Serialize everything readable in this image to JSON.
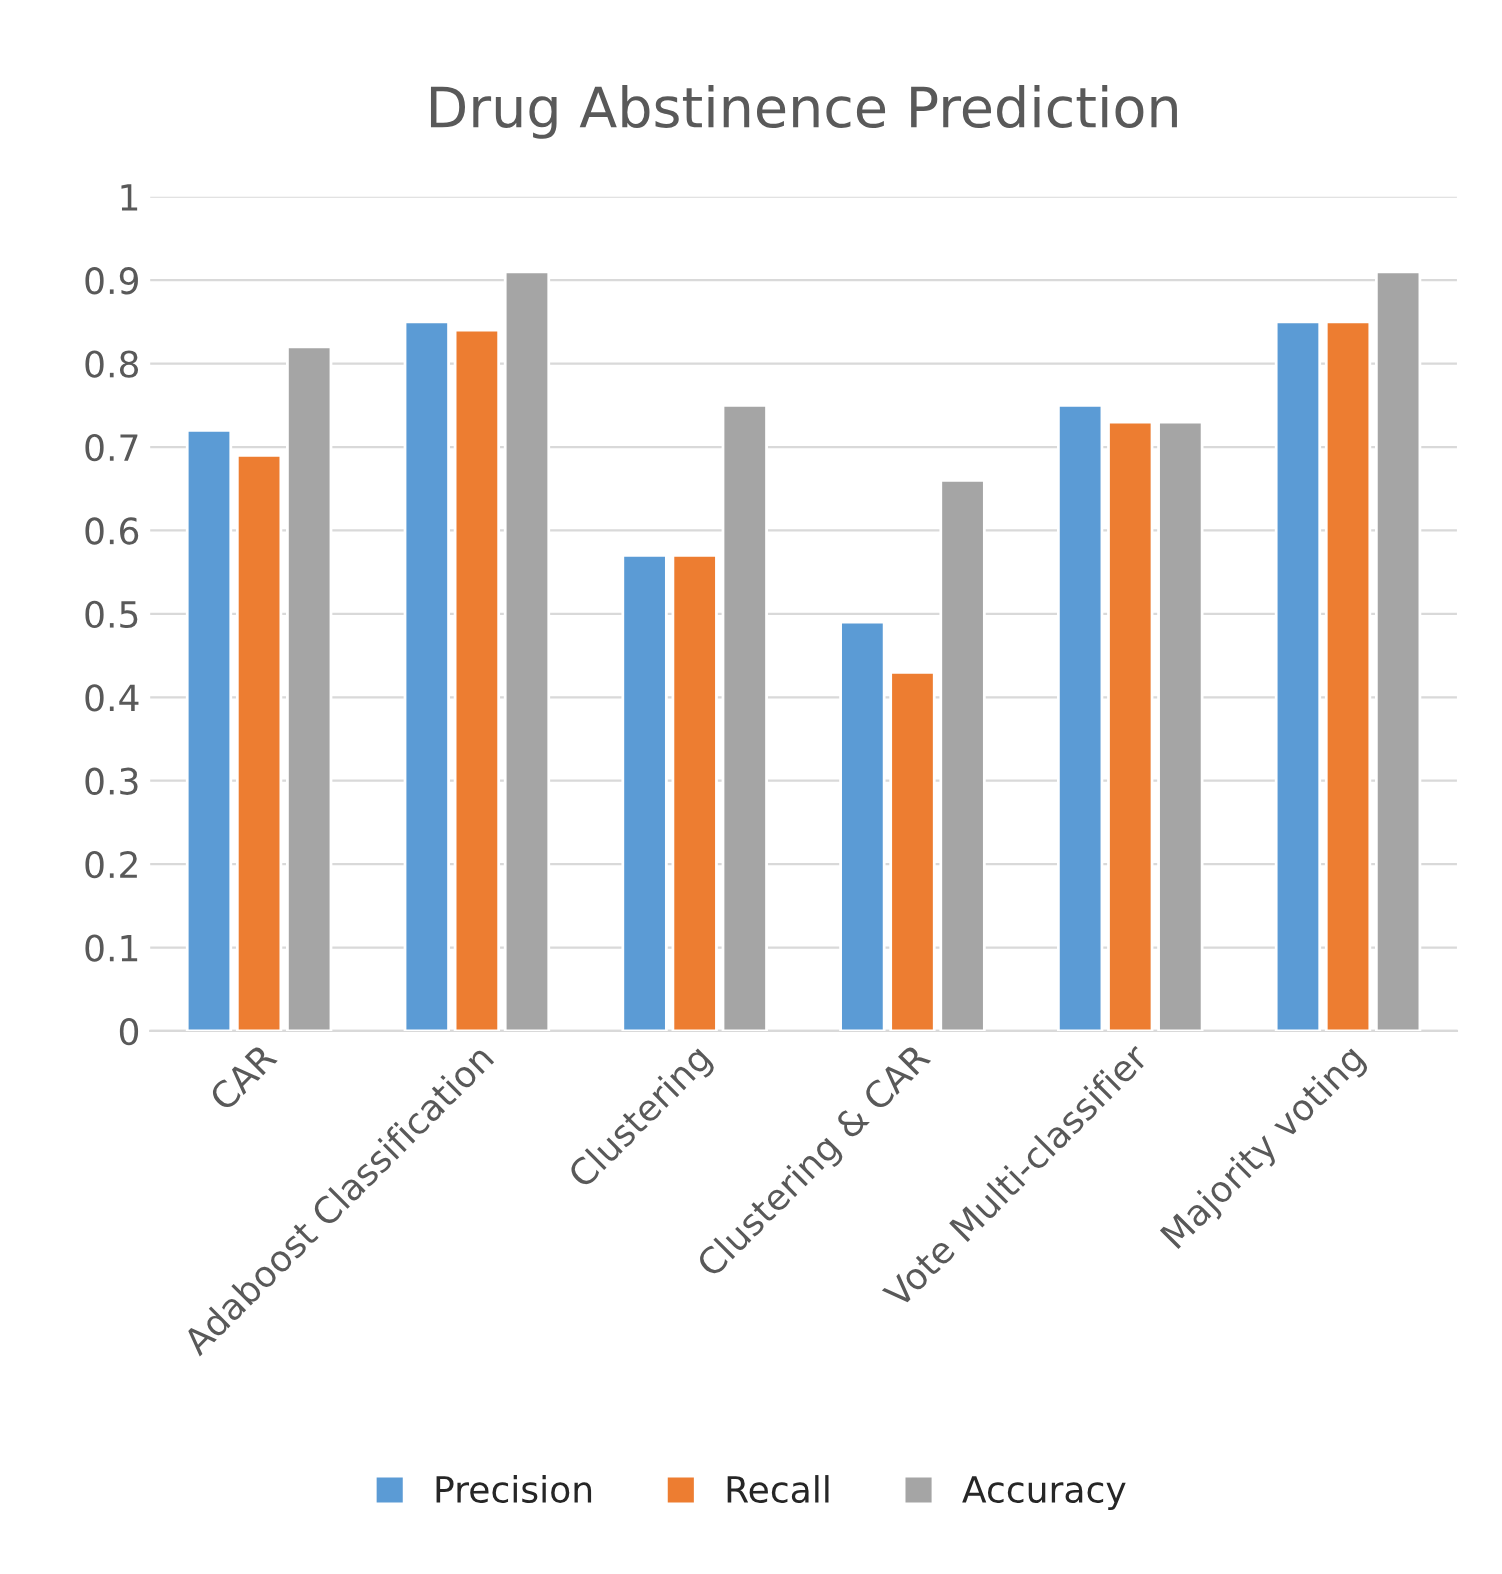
{
  "chart_data": {
    "type": "bar",
    "title": "Drug Abstinence Prediction",
    "categories": [
      "CAR",
      "Adaboost Classification",
      "Clustering",
      "Clustering & CAR",
      "Vote Multi-classifier",
      "Majority voting"
    ],
    "series": [
      {
        "name": "Precision",
        "color": "#5b9bd5",
        "values": [
          0.72,
          0.85,
          0.57,
          0.49,
          0.75,
          0.85
        ]
      },
      {
        "name": "Recall",
        "color": "#ed7d31",
        "values": [
          0.69,
          0.84,
          0.57,
          0.43,
          0.73,
          0.85
        ]
      },
      {
        "name": "Accuracy",
        "color": "#a5a5a5",
        "values": [
          0.82,
          0.91,
          0.75,
          0.66,
          0.73,
          0.91
        ]
      }
    ],
    "ylim": [
      0,
      1
    ],
    "yticks": [
      0,
      0.1,
      0.2,
      0.3,
      0.4,
      0.5,
      0.6,
      0.7,
      0.8,
      0.9,
      1
    ],
    "grid": "y",
    "legend": "bottom"
  }
}
